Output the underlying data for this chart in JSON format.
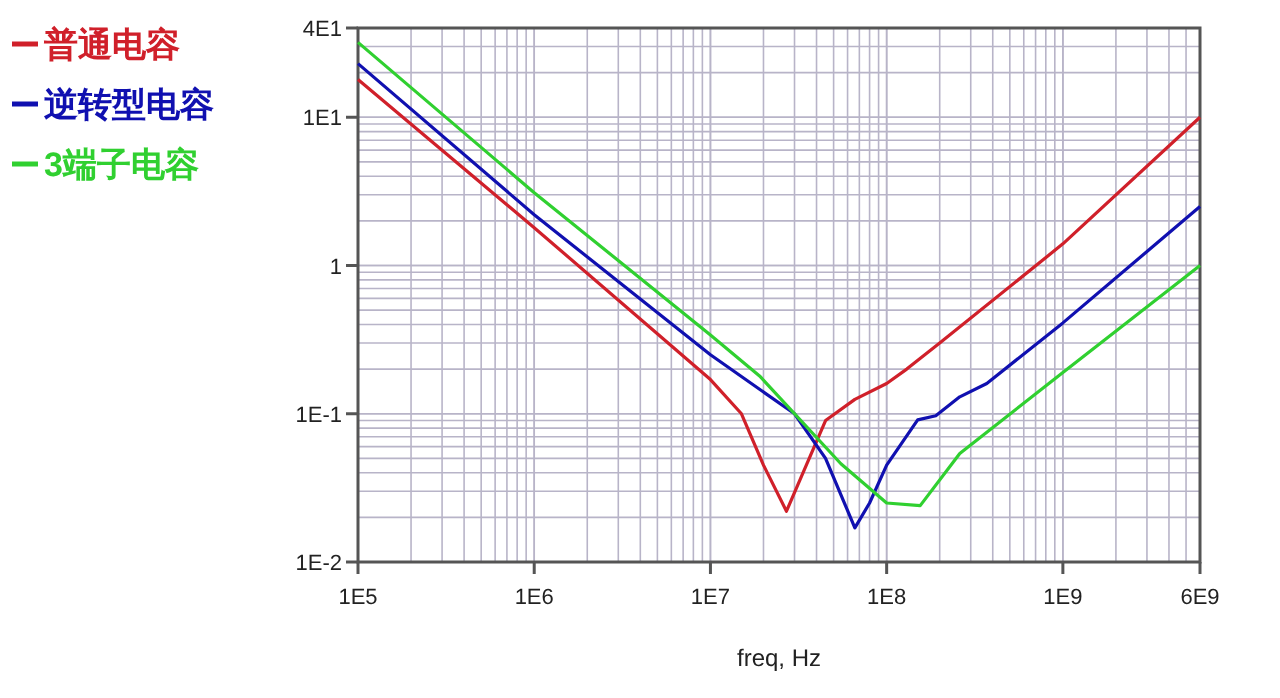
{
  "chart_data": {
    "type": "line",
    "xlabel": "freq, Hz",
    "log": "xy",
    "grid": true,
    "legend": "top left",
    "line_style": "solid",
    "xlim": [
      100000.0,
      6000000000.0
    ],
    "ylim": [
      0.01,
      40
    ],
    "xticks": [
      {
        "value": 100000.0,
        "label": "1E5"
      },
      {
        "value": 1000000.0,
        "label": "1E6"
      },
      {
        "value": 10000000.0,
        "label": "1E7"
      },
      {
        "value": 100000000.0,
        "label": "1E8"
      },
      {
        "value": 1000000000.0,
        "label": "1E9"
      },
      {
        "value": 6000000000.0,
        "label": "6E9"
      }
    ],
    "yticks": [
      {
        "value": 0.01,
        "label": "1E-2"
      },
      {
        "value": 0.1,
        "label": "1E-1"
      },
      1,
      {
        "value": 10,
        "label": "1E1"
      },
      {
        "value": 40,
        "label": "4E1"
      }
    ],
    "series": [
      {
        "name": "普通电容",
        "color": "#d0202a",
        "x": [
          100000.0,
          1000000.0,
          10000000.0,
          15000000.0,
          20000000.0,
          27000000.0,
          35000000.0,
          45000000.0,
          66000000.0,
          100000000.0,
          130000000.0,
          200000000.0,
          1000000000.0,
          6000000000.0
        ],
        "values": [
          18,
          1.8,
          0.17,
          0.1,
          0.045,
          0.022,
          0.045,
          0.09,
          0.125,
          0.16,
          0.2,
          0.3,
          1.4,
          10
        ]
      },
      {
        "name": "逆转型电容",
        "color": "#1010b0",
        "x": [
          100000.0,
          1000000.0,
          10000000.0,
          30000000.0,
          45000000.0,
          66000000.0,
          80000000.0,
          100000000.0,
          150000000.0,
          190000000.0,
          260000000.0,
          370000000.0,
          1000000000.0,
          6000000000.0
        ],
        "values": [
          23,
          2.2,
          0.25,
          0.1,
          0.05,
          0.017,
          0.025,
          0.045,
          0.091,
          0.097,
          0.13,
          0.16,
          0.41,
          2.5
        ]
      },
      {
        "name": "3端子电容",
        "color": "#30d030",
        "x": [
          100000.0,
          1000000.0,
          10000000.0,
          19000000.0,
          55000000.0,
          100000000.0,
          155000000.0,
          260000000.0,
          1000000000.0,
          6000000000.0
        ],
        "values": [
          32,
          3.1,
          0.34,
          0.18,
          0.046,
          0.025,
          0.024,
          0.054,
          0.19,
          1.0
        ]
      }
    ]
  }
}
